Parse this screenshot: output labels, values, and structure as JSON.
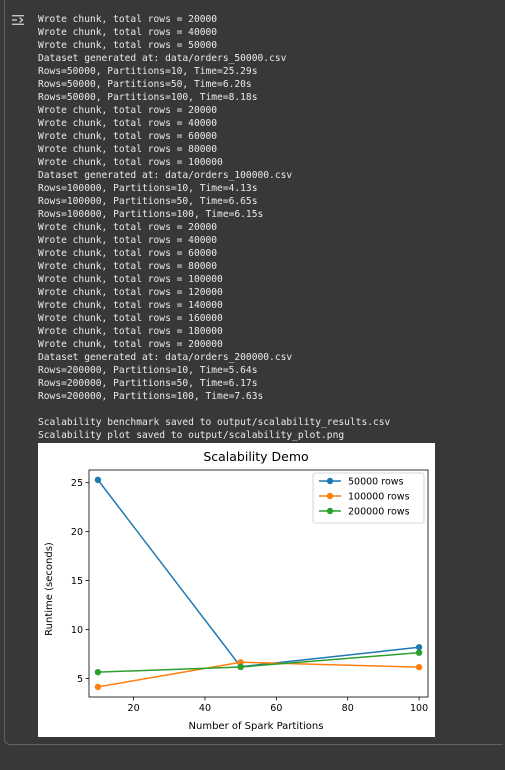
{
  "output": {
    "lines": [
      "Wrote chunk, total rows = 20000",
      "Wrote chunk, total rows = 40000",
      "Wrote chunk, total rows = 50000",
      "Dataset generated at: data/orders_50000.csv",
      "Rows=50000, Partitions=10, Time=25.29s",
      "Rows=50000, Partitions=50, Time=6.20s",
      "Rows=50000, Partitions=100, Time=8.18s",
      "Wrote chunk, total rows = 20000",
      "Wrote chunk, total rows = 40000",
      "Wrote chunk, total rows = 60000",
      "Wrote chunk, total rows = 80000",
      "Wrote chunk, total rows = 100000",
      "Dataset generated at: data/orders_100000.csv",
      "Rows=100000, Partitions=10, Time=4.13s",
      "Rows=100000, Partitions=50, Time=6.65s",
      "Rows=100000, Partitions=100, Time=6.15s",
      "Wrote chunk, total rows = 20000",
      "Wrote chunk, total rows = 40000",
      "Wrote chunk, total rows = 60000",
      "Wrote chunk, total rows = 80000",
      "Wrote chunk, total rows = 100000",
      "Wrote chunk, total rows = 120000",
      "Wrote chunk, total rows = 140000",
      "Wrote chunk, total rows = 160000",
      "Wrote chunk, total rows = 180000",
      "Wrote chunk, total rows = 200000",
      "Dataset generated at: data/orders_200000.csv",
      "Rows=200000, Partitions=10, Time=5.64s",
      "Rows=200000, Partitions=50, Time=6.17s",
      "Rows=200000, Partitions=100, Time=7.63s",
      "",
      "Scalability benchmark saved to output/scalability_results.csv",
      "Scalability plot saved to output/scalability_plot.png"
    ]
  },
  "icons": {
    "output": "output-arrow-icon"
  },
  "chart_data": {
    "type": "line",
    "title": "Scalability Demo",
    "xlabel": "Number of Spark Partitions",
    "ylabel": "Runtime (seconds)",
    "x": [
      10,
      50,
      100
    ],
    "xlim": [
      7.5,
      102.5
    ],
    "ylim": [
      3.1,
      26.3
    ],
    "xticks": [
      20,
      40,
      60,
      80,
      100
    ],
    "yticks": [
      5,
      10,
      15,
      20,
      25
    ],
    "grid": false,
    "legend": "top-right",
    "series": [
      {
        "name": "50000 rows",
        "values": [
          25.29,
          6.2,
          8.18
        ],
        "color": "#1f77b4"
      },
      {
        "name": "100000 rows",
        "values": [
          4.13,
          6.65,
          6.15
        ],
        "color": "#ff7f0e"
      },
      {
        "name": "200000 rows",
        "values": [
          5.64,
          6.17,
          7.63
        ],
        "color": "#2ca02c"
      }
    ]
  }
}
